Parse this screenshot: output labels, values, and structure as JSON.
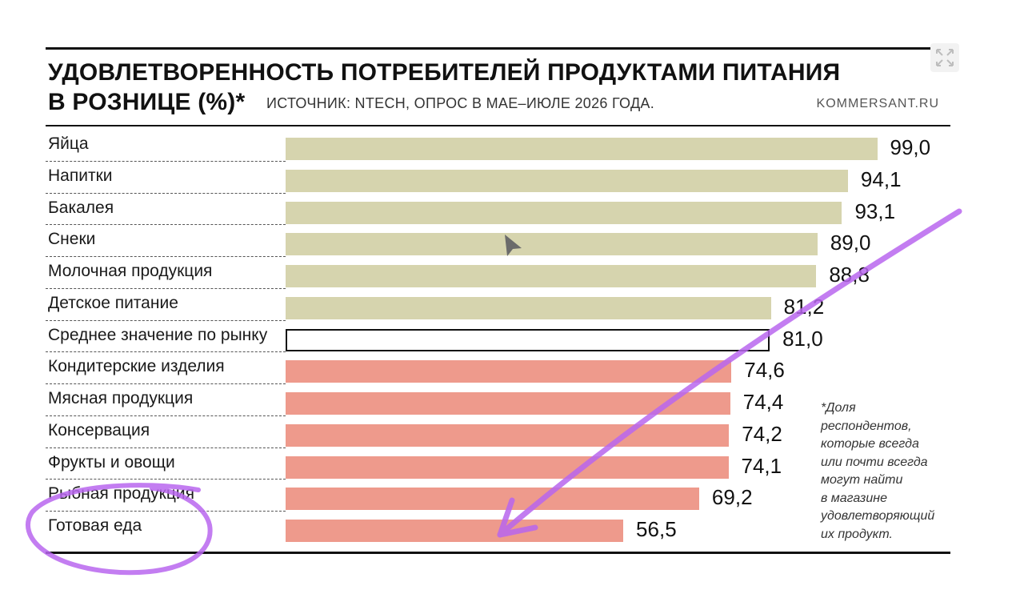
{
  "chart_data": {
    "type": "bar",
    "orientation": "horizontal",
    "title_line1": "УДОВЛЕТВОРЕННОСТЬ ПОТРЕБИТЕЛЕЙ ПРОДУКТАМИ ПИТАНИЯ",
    "title_line2": "В РОЗНИЦЕ (%)*",
    "source": "ИСТОЧНИК: NTECH, ОПРОС В МАЕ–ИЮЛЕ 2026 ГОДА.",
    "site": "KOMMERSANT.RU",
    "footnote": "*Доля\nреспондентов,\nкоторые всегда\nили почти всегда\nмогут найти\nв магазине\nудовлетворяющий\nих продукт.",
    "xlim": [
      0,
      100
    ],
    "grid": false,
    "legend": "none",
    "colors": {
      "above": "#d6d4ae",
      "average_fill": "#ffffff",
      "average_stroke": "#111111",
      "below": "#ee9a8c"
    },
    "categories": [
      "Яйца",
      "Напитки",
      "Бакалея",
      "Снеки",
      "Молочная продукция",
      "Детское питание",
      "Среднее значение по рынку",
      "Кондитерские изделия",
      "Мясная продукция",
      "Консервация",
      "Фрукты и овощи",
      "Рыбная продукция",
      "Готовая еда"
    ],
    "values": [
      99.0,
      94.1,
      93.1,
      89.0,
      88.8,
      81.2,
      81.0,
      74.6,
      74.4,
      74.2,
      74.1,
      69.2,
      56.5
    ],
    "value_labels": [
      "99,0",
      "94,1",
      "93,1",
      "89,0",
      "88,8",
      "81,2",
      "81,0",
      "74,6",
      "74,4",
      "74,2",
      "74,1",
      "69,2",
      "56,5"
    ],
    "groups": [
      "above",
      "above",
      "above",
      "above",
      "above",
      "above",
      "average",
      "below",
      "below",
      "below",
      "below",
      "below",
      "below"
    ]
  },
  "annotations": {
    "pen_color": "#b866ee",
    "shapes": [
      "arrow",
      "ellipse"
    ]
  },
  "icons": {
    "cursor": "mouse-pointer-icon",
    "expand": "expand-icon"
  }
}
